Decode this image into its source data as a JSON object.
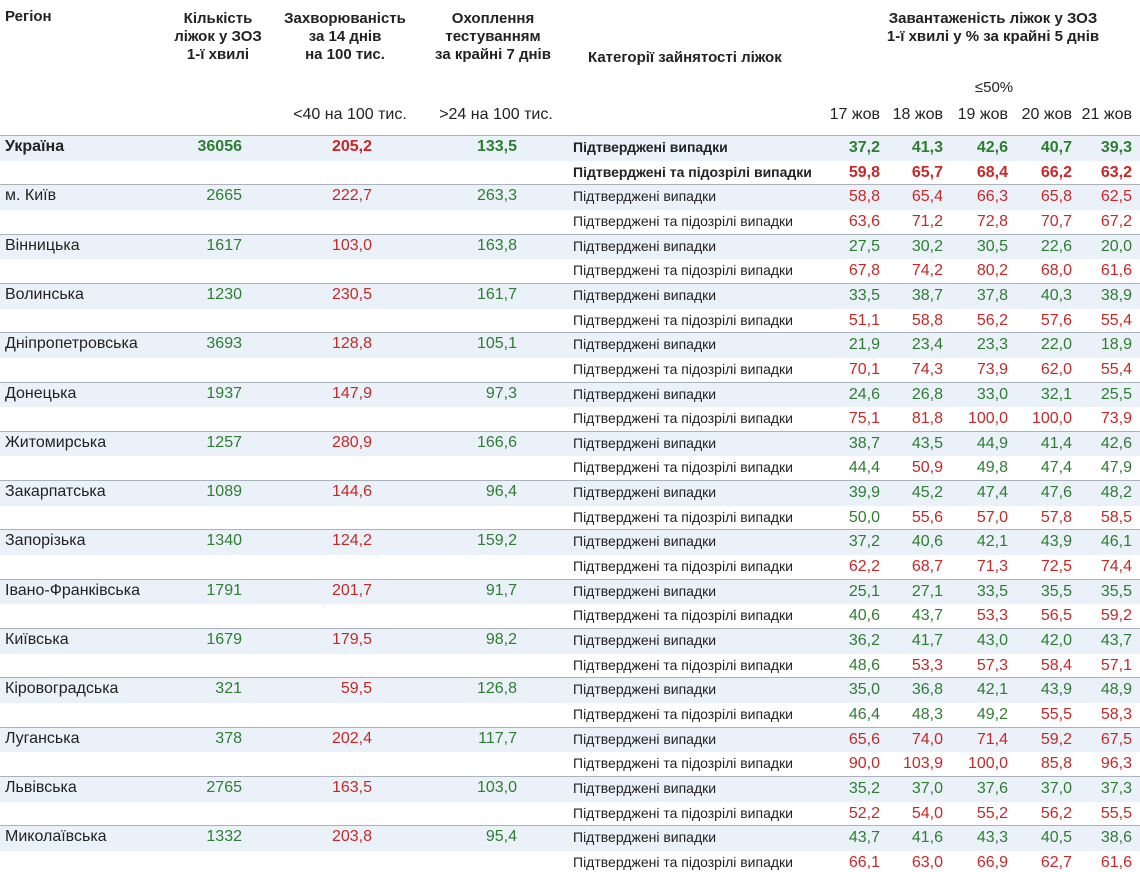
{
  "header": {
    "region": "Регіон",
    "beds": [
      "Кількість",
      "ліжок у ЗОЗ",
      "1-ї хвилі"
    ],
    "incidence": [
      "Захворюваність",
      "за 14 днів",
      "на 100 тис."
    ],
    "coverage": [
      "Охоплення",
      "тестуванням",
      "за крайні 7 днів"
    ],
    "category": "Категорії зайнятості ліжок",
    "load": [
      "Завантаженість ліжок у ЗОЗ",
      "1-ї хвилі у % за крайні 5 днів"
    ]
  },
  "thresholds": {
    "incidence": "<40 на 100 тис.",
    "coverage": ">24 на 100 тис.",
    "load": {
      "value": 50,
      "label": "≤50%"
    }
  },
  "dates": [
    "17 жов",
    "18 жов",
    "19 жов",
    "20 жов",
    "21 жов"
  ],
  "categories": [
    "Підтверджені випадки",
    "Підтверджені та підозрілі випадки"
  ],
  "colors": {
    "beds": "#2e7d32",
    "incidence": "#c62828",
    "coverage": "#2e7d32",
    "load_low": "#2e7d32",
    "load_high": "#c62828"
  },
  "rows": [
    {
      "region": "Україна",
      "beds": "36056",
      "incidence": "205,2",
      "coverage": "133,5",
      "confirmed": [
        "37,2",
        "41,3",
        "42,6",
        "40,7",
        "39,3"
      ],
      "suspected": [
        "59,8",
        "65,7",
        "68,4",
        "66,2",
        "63,2"
      ]
    },
    {
      "region": "м. Київ",
      "beds": "2665",
      "incidence": "222,7",
      "coverage": "263,3",
      "confirmed": [
        "58,8",
        "65,4",
        "66,3",
        "65,8",
        "62,5"
      ],
      "suspected": [
        "63,6",
        "71,2",
        "72,8",
        "70,7",
        "67,2"
      ]
    },
    {
      "region": "Вінницька",
      "beds": "1617",
      "incidence": "103,0",
      "coverage": "163,8",
      "confirmed": [
        "27,5",
        "30,2",
        "30,5",
        "22,6",
        "20,0"
      ],
      "suspected": [
        "67,8",
        "74,2",
        "80,2",
        "68,0",
        "61,6"
      ]
    },
    {
      "region": "Волинська",
      "beds": "1230",
      "incidence": "230,5",
      "coverage": "161,7",
      "confirmed": [
        "33,5",
        "38,7",
        "37,8",
        "40,3",
        "38,9"
      ],
      "suspected": [
        "51,1",
        "58,8",
        "56,2",
        "57,6",
        "55,4"
      ]
    },
    {
      "region": "Дніпропетровська",
      "beds": "3693",
      "incidence": "128,8",
      "coverage": "105,1",
      "confirmed": [
        "21,9",
        "23,4",
        "23,3",
        "22,0",
        "18,9"
      ],
      "suspected": [
        "70,1",
        "74,3",
        "73,9",
        "62,0",
        "55,4"
      ]
    },
    {
      "region": "Донецька",
      "beds": "1937",
      "incidence": "147,9",
      "coverage": "97,3",
      "confirmed": [
        "24,6",
        "26,8",
        "33,0",
        "32,1",
        "25,5"
      ],
      "suspected": [
        "75,1",
        "81,8",
        "100,0",
        "100,0",
        "73,9"
      ]
    },
    {
      "region": "Житомирська",
      "beds": "1257",
      "incidence": "280,9",
      "coverage": "166,6",
      "confirmed": [
        "38,7",
        "43,5",
        "44,9",
        "41,4",
        "42,6"
      ],
      "suspected": [
        "44,4",
        "50,9",
        "49,8",
        "47,4",
        "47,9"
      ]
    },
    {
      "region": "Закарпатська",
      "beds": "1089",
      "incidence": "144,6",
      "coverage": "96,4",
      "confirmed": [
        "39,9",
        "45,2",
        "47,4",
        "47,6",
        "48,2"
      ],
      "suspected": [
        "50,0",
        "55,6",
        "57,0",
        "57,8",
        "58,5"
      ]
    },
    {
      "region": "Запорізька",
      "beds": "1340",
      "incidence": "124,2",
      "coverage": "159,2",
      "confirmed": [
        "37,2",
        "40,6",
        "42,1",
        "43,9",
        "46,1"
      ],
      "suspected": [
        "62,2",
        "68,7",
        "71,3",
        "72,5",
        "74,4"
      ]
    },
    {
      "region": "Івано-Франківська",
      "beds": "1791",
      "incidence": "201,7",
      "coverage": "91,7",
      "confirmed": [
        "25,1",
        "27,1",
        "33,5",
        "35,5",
        "35,5"
      ],
      "suspected": [
        "40,6",
        "43,7",
        "53,3",
        "56,5",
        "59,2"
      ]
    },
    {
      "region": "Київська",
      "beds": "1679",
      "incidence": "179,5",
      "coverage": "98,2",
      "confirmed": [
        "36,2",
        "41,7",
        "43,0",
        "42,0",
        "43,7"
      ],
      "suspected": [
        "48,6",
        "53,3",
        "57,3",
        "58,4",
        "57,1"
      ]
    },
    {
      "region": "Кіровоградська",
      "beds": "321",
      "incidence": "59,5",
      "coverage": "126,8",
      "confirmed": [
        "35,0",
        "36,8",
        "42,1",
        "43,9",
        "48,9"
      ],
      "suspected": [
        "46,4",
        "48,3",
        "49,2",
        "55,5",
        "58,3"
      ]
    },
    {
      "region": "Луганська",
      "beds": "378",
      "incidence": "202,4",
      "coverage": "117,7",
      "confirmed": [
        "65,6",
        "74,0",
        "71,4",
        "59,2",
        "67,5"
      ],
      "suspected": [
        "90,0",
        "103,9",
        "100,0",
        "85,8",
        "96,3"
      ]
    },
    {
      "region": "Львівська",
      "beds": "2765",
      "incidence": "163,5",
      "coverage": "103,0",
      "confirmed": [
        "35,2",
        "37,0",
        "37,6",
        "37,0",
        "37,3"
      ],
      "suspected": [
        "52,2",
        "54,0",
        "55,2",
        "56,2",
        "55,5"
      ]
    },
    {
      "region": "Миколаївська",
      "beds": "1332",
      "incidence": "203,8",
      "coverage": "95,4",
      "confirmed": [
        "43,7",
        "41,6",
        "43,3",
        "40,5",
        "38,6"
      ],
      "suspected": [
        "66,1",
        "63,0",
        "66,9",
        "62,7",
        "61,6"
      ]
    }
  ]
}
